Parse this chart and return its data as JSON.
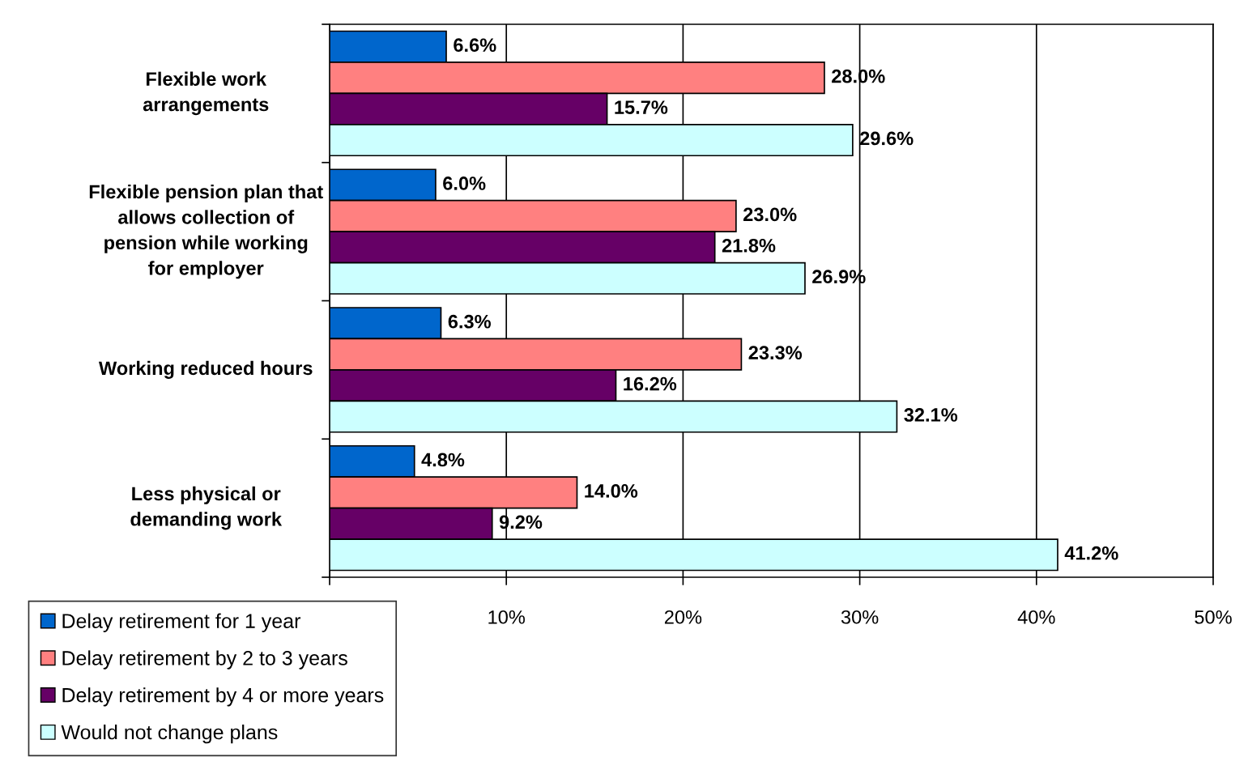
{
  "chart_data": {
    "type": "bar",
    "orientation": "horizontal",
    "categories": [
      "Flexible work\narrangements",
      "Flexible pension plan that\nallows collection of\npension while working\nfor employer",
      "Working reduced hours",
      "Less physical or\ndemanding work"
    ],
    "series": [
      {
        "name": "Delay retirement for 1 year",
        "color": "#0066cc",
        "values": [
          6.6,
          6.0,
          6.3,
          4.8
        ],
        "value_labels": [
          "6.6%",
          "6.0%",
          "6.3%",
          "4.8%"
        ]
      },
      {
        "name": "Delay retirement by 2 to 3 years",
        "color": "#ff8080",
        "values": [
          28.0,
          23.0,
          23.3,
          14.0
        ],
        "value_labels": [
          "28.0%",
          "23.0%",
          "23.3%",
          "14.0%"
        ]
      },
      {
        "name": "Delay retirement by 4 or more years",
        "color": "#660066",
        "values": [
          15.7,
          21.8,
          16.2,
          9.2
        ],
        "value_labels": [
          "15.7%",
          "21.8%",
          "16.2%",
          "9.2%"
        ]
      },
      {
        "name": "Would not change plans",
        "color": "#ccffff",
        "values": [
          29.6,
          26.9,
          32.1,
          41.2
        ],
        "value_labels": [
          "29.6%",
          "26.9%",
          "32.1%",
          "41.2%"
        ]
      }
    ],
    "xlim": [
      0,
      50
    ],
    "xticks": [
      {
        "value": 0,
        "label": null
      },
      {
        "value": 10,
        "label": "10%"
      },
      {
        "value": 20,
        "label": "20%"
      },
      {
        "value": 30,
        "label": "30%"
      },
      {
        "value": 40,
        "label": "40%"
      },
      {
        "value": 50,
        "label": "50%"
      }
    ],
    "grid": "x",
    "legend": "bottom left"
  }
}
